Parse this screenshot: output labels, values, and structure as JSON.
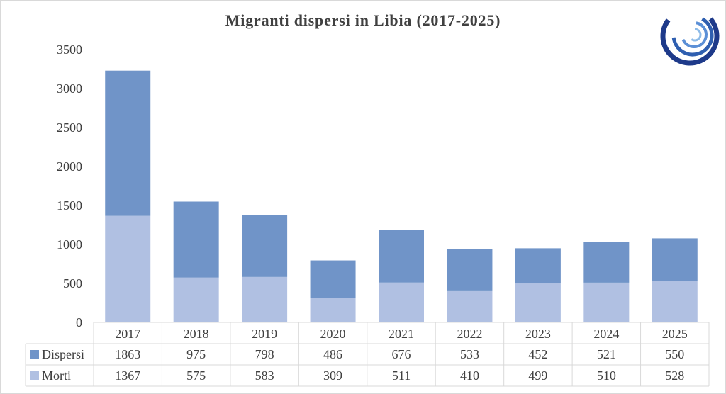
{
  "chart_data": {
    "type": "bar",
    "stacked": true,
    "title": "Migranti dispersi in Libia (2017-2025)",
    "categories": [
      "2017",
      "2018",
      "2019",
      "2020",
      "2021",
      "2022",
      "2023",
      "2024",
      "2025"
    ],
    "series": [
      {
        "name": "Dispersi",
        "values": [
          1863,
          975,
          798,
          486,
          676,
          533,
          452,
          521,
          550
        ],
        "color": "#7094c8"
      },
      {
        "name": "Morti",
        "values": [
          1367,
          575,
          583,
          309,
          511,
          410,
          499,
          510,
          528
        ],
        "color": "#b0c0e2"
      }
    ],
    "stack_order_bottom_to_top": [
      "Morti",
      "Dispersi"
    ],
    "ylim": [
      0,
      3500
    ],
    "yticks": [
      "0",
      "500",
      "1000",
      "1500",
      "2000",
      "2500",
      "3000",
      "3500"
    ],
    "grid": false,
    "legend": "data-table-below",
    "data_table": true
  },
  "colors": {
    "text": "#404040",
    "table_border": "#d9d9d9",
    "logo_dark": "#1e3a8a",
    "logo_light": "#6fa8dc"
  },
  "logo": {
    "icon": "concentric-circles-logo"
  }
}
